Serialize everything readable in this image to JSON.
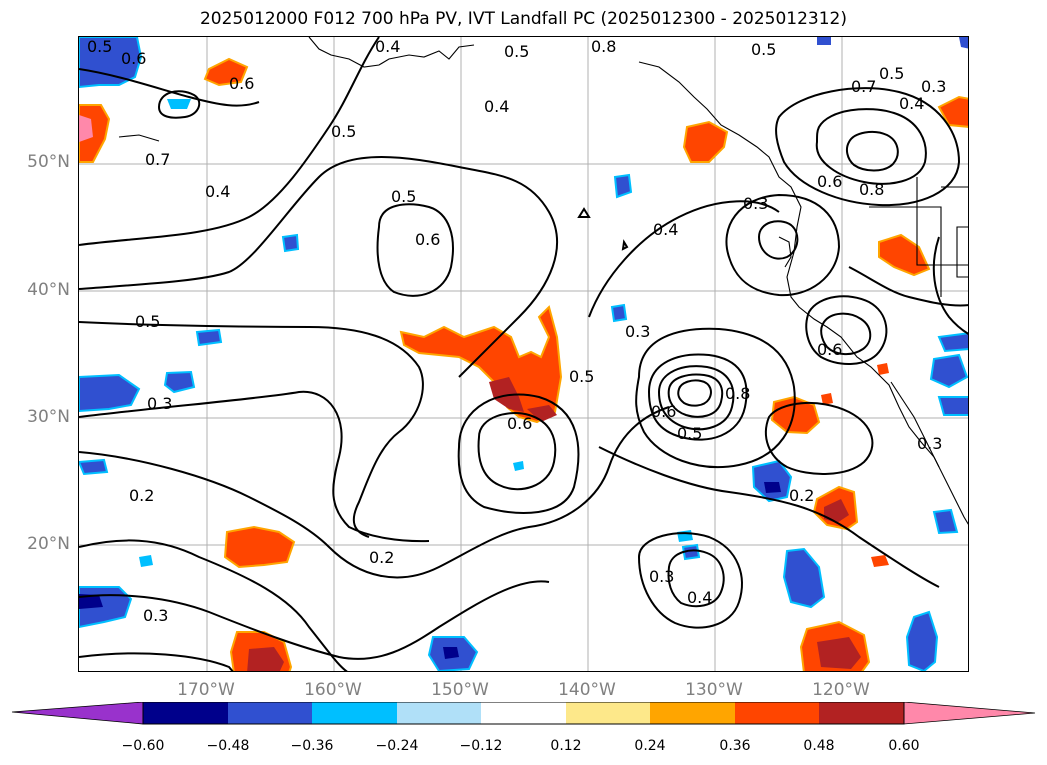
{
  "title": "2025012000 F012 700 hPa PV, IVT Landfall PC (2025012300 - 2025012312)",
  "lat_labels": [
    "50°N",
    "40°N",
    "30°N",
    "20°N"
  ],
  "lon_labels": [
    "170°W",
    "160°W",
    "150°W",
    "140°W",
    "130°W",
    "120°W"
  ],
  "contour_labels": [
    "0.5",
    "0.6",
    "0.6",
    "0.7",
    "0.4",
    "0.5",
    "0.4",
    "0.5",
    "0.6",
    "0.5",
    "0.3",
    "0.2",
    "0.3",
    "0.2",
    "0.6",
    "0.5",
    "0.3",
    "0.8",
    "0.5",
    "0.4",
    "0.6",
    "0.5",
    "0.3",
    "0.3",
    "0.4",
    "0.2",
    "0.7",
    "0.5",
    "0.8",
    "0.6",
    "0.8",
    "0.4",
    "0.3",
    "0.5",
    "0.6",
    "0.3",
    "0.4"
  ],
  "colorbar": {
    "ticks": [
      "−0.60",
      "−0.48",
      "−0.36",
      "−0.24",
      "−0.12",
      "0.12",
      "0.24",
      "0.36",
      "0.48",
      "0.60"
    ],
    "colors": [
      "#9932cc",
      "#00008b",
      "#3050d0",
      "#00bfff",
      "#b0e0f8",
      "#ffffff",
      "#fde88a",
      "#ffa500",
      "#ff4500",
      "#b22222",
      "#ff88aa"
    ]
  }
}
